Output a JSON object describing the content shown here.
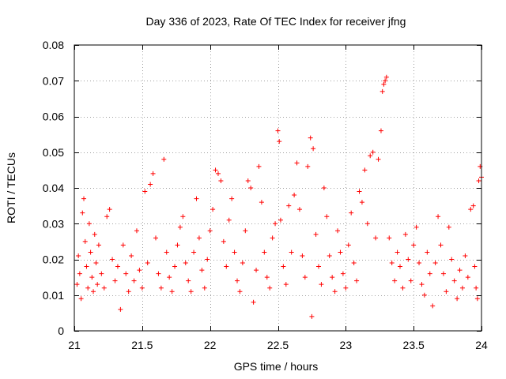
{
  "chart_data": {
    "type": "scatter",
    "title": "Day 336 of 2023, Rate Of TEC Index for receiver jfng",
    "xlabel": "GPS time / hours",
    "ylabel": "ROTI / TECUs",
    "xlim": [
      21,
      24
    ],
    "ylim": [
      0,
      0.08
    ],
    "x_ticks": [
      21,
      21.5,
      22,
      22.5,
      23,
      23.5,
      24
    ],
    "x_tick_labels": [
      "21",
      "21.5",
      "22",
      "22.5",
      "23",
      "23.5",
      "24"
    ],
    "y_ticks": [
      0,
      0.01,
      0.02,
      0.03,
      0.04,
      0.05,
      0.06,
      0.07,
      0.08
    ],
    "y_tick_labels": [
      "0",
      "0.01",
      "0.02",
      "0.03",
      "0.04",
      "0.05",
      "0.06",
      "0.07",
      "0.08"
    ],
    "grid": true,
    "marker": "+",
    "color": "#ff0000",
    "series": [
      {
        "name": "ROTI",
        "points": [
          [
            21.02,
            0.013
          ],
          [
            21.03,
            0.021
          ],
          [
            21.04,
            0.016
          ],
          [
            21.05,
            0.009
          ],
          [
            21.06,
            0.033
          ],
          [
            21.07,
            0.037
          ],
          [
            21.08,
            0.025
          ],
          [
            21.09,
            0.018
          ],
          [
            21.1,
            0.012
          ],
          [
            21.11,
            0.03
          ],
          [
            21.12,
            0.022
          ],
          [
            21.13,
            0.015
          ],
          [
            21.14,
            0.011
          ],
          [
            21.15,
            0.027
          ],
          [
            21.16,
            0.019
          ],
          [
            21.17,
            0.013
          ],
          [
            21.18,
            0.024
          ],
          [
            21.2,
            0.016
          ],
          [
            21.22,
            0.012
          ],
          [
            21.24,
            0.032
          ],
          [
            21.26,
            0.034
          ],
          [
            21.28,
            0.02
          ],
          [
            21.3,
            0.014
          ],
          [
            21.32,
            0.018
          ],
          [
            21.34,
            0.006
          ],
          [
            21.36,
            0.024
          ],
          [
            21.38,
            0.016
          ],
          [
            21.4,
            0.011
          ],
          [
            21.42,
            0.021
          ],
          [
            21.44,
            0.014
          ],
          [
            21.46,
            0.028
          ],
          [
            21.48,
            0.017
          ],
          [
            21.5,
            0.012
          ],
          [
            21.52,
            0.039
          ],
          [
            21.54,
            0.019
          ],
          [
            21.56,
            0.041
          ],
          [
            21.58,
            0.044
          ],
          [
            21.6,
            0.026
          ],
          [
            21.62,
            0.016
          ],
          [
            21.64,
            0.012
          ],
          [
            21.66,
            0.048
          ],
          [
            21.68,
            0.022
          ],
          [
            21.7,
            0.015
          ],
          [
            21.72,
            0.011
          ],
          [
            21.74,
            0.018
          ],
          [
            21.76,
            0.024
          ],
          [
            21.78,
            0.029
          ],
          [
            21.8,
            0.032
          ],
          [
            21.82,
            0.019
          ],
          [
            21.84,
            0.014
          ],
          [
            21.86,
            0.011
          ],
          [
            21.88,
            0.022
          ],
          [
            21.9,
            0.037
          ],
          [
            21.92,
            0.026
          ],
          [
            21.94,
            0.017
          ],
          [
            21.96,
            0.012
          ],
          [
            21.98,
            0.02
          ],
          [
            22.0,
            0.028
          ],
          [
            22.02,
            0.034
          ],
          [
            22.04,
            0.045
          ],
          [
            22.06,
            0.044
          ],
          [
            22.08,
            0.042
          ],
          [
            22.1,
            0.025
          ],
          [
            22.12,
            0.018
          ],
          [
            22.14,
            0.031
          ],
          [
            22.16,
            0.037
          ],
          [
            22.18,
            0.022
          ],
          [
            22.2,
            0.014
          ],
          [
            22.22,
            0.011
          ],
          [
            22.24,
            0.019
          ],
          [
            22.26,
            0.028
          ],
          [
            22.28,
            0.042
          ],
          [
            22.3,
            0.04
          ],
          [
            22.32,
            0.008
          ],
          [
            22.34,
            0.017
          ],
          [
            22.36,
            0.046
          ],
          [
            22.38,
            0.036
          ],
          [
            22.4,
            0.022
          ],
          [
            22.42,
            0.015
          ],
          [
            22.44,
            0.012
          ],
          [
            22.46,
            0.026
          ],
          [
            22.48,
            0.03
          ],
          [
            22.5,
            0.056
          ],
          [
            22.51,
            0.053
          ],
          [
            22.52,
            0.031
          ],
          [
            22.54,
            0.018
          ],
          [
            22.56,
            0.013
          ],
          [
            22.58,
            0.035
          ],
          [
            22.6,
            0.022
          ],
          [
            22.62,
            0.038
          ],
          [
            22.64,
            0.047
          ],
          [
            22.66,
            0.034
          ],
          [
            22.68,
            0.021
          ],
          [
            22.7,
            0.015
          ],
          [
            22.72,
            0.046
          ],
          [
            22.74,
            0.054
          ],
          [
            22.75,
            0.004
          ],
          [
            22.76,
            0.051
          ],
          [
            22.78,
            0.027
          ],
          [
            22.8,
            0.018
          ],
          [
            22.82,
            0.013
          ],
          [
            22.84,
            0.04
          ],
          [
            22.86,
            0.032
          ],
          [
            22.88,
            0.021
          ],
          [
            22.9,
            0.015
          ],
          [
            22.92,
            0.011
          ],
          [
            22.94,
            0.028
          ],
          [
            22.96,
            0.022
          ],
          [
            22.98,
            0.016
          ],
          [
            23.0,
            0.012
          ],
          [
            23.02,
            0.024
          ],
          [
            23.04,
            0.033
          ],
          [
            23.06,
            0.019
          ],
          [
            23.08,
            0.014
          ],
          [
            23.1,
            0.039
          ],
          [
            23.12,
            0.036
          ],
          [
            23.14,
            0.045
          ],
          [
            23.16,
            0.03
          ],
          [
            23.18,
            0.049
          ],
          [
            23.2,
            0.05
          ],
          [
            23.22,
            0.026
          ],
          [
            23.24,
            0.048
          ],
          [
            23.26,
            0.056
          ],
          [
            23.27,
            0.067
          ],
          [
            23.28,
            0.069
          ],
          [
            23.29,
            0.07
          ],
          [
            23.3,
            0.071
          ],
          [
            23.32,
            0.026
          ],
          [
            23.34,
            0.019
          ],
          [
            23.36,
            0.014
          ],
          [
            23.38,
            0.022
          ],
          [
            23.4,
            0.018
          ],
          [
            23.42,
            0.012
          ],
          [
            23.44,
            0.027
          ],
          [
            23.46,
            0.02
          ],
          [
            23.48,
            0.014
          ],
          [
            23.5,
            0.024
          ],
          [
            23.52,
            0.029
          ],
          [
            23.54,
            0.019
          ],
          [
            23.56,
            0.013
          ],
          [
            23.58,
            0.01
          ],
          [
            23.6,
            0.022
          ],
          [
            23.62,
            0.016
          ],
          [
            23.64,
            0.007
          ],
          [
            23.66,
            0.019
          ],
          [
            23.68,
            0.032
          ],
          [
            23.7,
            0.024
          ],
          [
            23.72,
            0.016
          ],
          [
            23.74,
            0.011
          ],
          [
            23.76,
            0.029
          ],
          [
            23.78,
            0.02
          ],
          [
            23.8,
            0.014
          ],
          [
            23.82,
            0.009
          ],
          [
            23.84,
            0.017
          ],
          [
            23.86,
            0.012
          ],
          [
            23.88,
            0.021
          ],
          [
            23.9,
            0.015
          ],
          [
            23.92,
            0.034
          ],
          [
            23.94,
            0.035
          ],
          [
            23.95,
            0.018
          ],
          [
            23.96,
            0.012
          ],
          [
            23.97,
            0.009
          ],
          [
            23.98,
            0.042
          ],
          [
            23.99,
            0.046
          ],
          [
            24.0,
            0.043
          ]
        ]
      }
    ]
  }
}
